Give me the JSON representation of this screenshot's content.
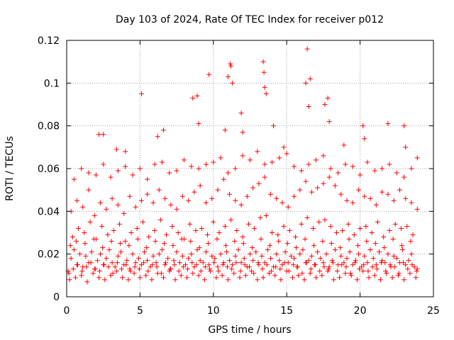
{
  "chart_data": {
    "type": "scatter",
    "title": "Day 103 of 2024, Rate Of TEC Index for receiver p012",
    "xlabel": "GPS time / hours",
    "ylabel": "ROTI / TECUs",
    "xlim": [
      0,
      25
    ],
    "ylim": [
      0,
      0.12
    ],
    "xticks": [
      0,
      5,
      10,
      15,
      20,
      25
    ],
    "xtick_labels": [
      "0",
      "5",
      "10",
      "15",
      "20",
      "25"
    ],
    "yticks": [
      0,
      0.02,
      0.04,
      0.06,
      0.08,
      0.1,
      0.12
    ],
    "ytick_labels": [
      "0",
      "0.02",
      "0.04",
      "0.06",
      "0.08",
      "0.1",
      "0.12"
    ],
    "grid": true,
    "marker": "plus",
    "color": "#ff0000",
    "series": [
      {
        "x": [
          0.1,
          0.3,
          0.5,
          0.7,
          0.9,
          1.1,
          1.3,
          1.5,
          1.7,
          1.9,
          2.1,
          2.3,
          2.5,
          2.7,
          2.9,
          3.1,
          3.3,
          3.5,
          3.7,
          3.9,
          4.1,
          4.3,
          4.5,
          4.7,
          4.9,
          5.1,
          5.3,
          5.5,
          5.7,
          5.9,
          6.1,
          6.3,
          6.5,
          6.7,
          6.9,
          7.1,
          7.3,
          7.5,
          7.7,
          7.9,
          8.1,
          8.3,
          8.5,
          8.7,
          8.9,
          9.1,
          9.3,
          9.5,
          9.7,
          9.9,
          10.1,
          10.3,
          10.5,
          10.7,
          10.9,
          11.1,
          11.3,
          11.5,
          11.7,
          11.9,
          12.1,
          12.3,
          12.5,
          12.7,
          12.9,
          13.1,
          13.3,
          13.5,
          13.7,
          13.9,
          14.1,
          14.3,
          14.5,
          14.7,
          14.9,
          15.1,
          15.3,
          15.5,
          15.7,
          15.9,
          16.1,
          16.3,
          16.5,
          16.7,
          16.9,
          17.1,
          17.3,
          17.5,
          17.7,
          17.9,
          18.1,
          18.3,
          18.5,
          18.7,
          18.9,
          19.1,
          19.3,
          19.5,
          19.7,
          19.9,
          20.1,
          20.3,
          20.5,
          20.7,
          20.9,
          21.1,
          21.3,
          21.5,
          21.7,
          21.9,
          22.1,
          22.3,
          22.5,
          22.7,
          22.9,
          23.1,
          23.3,
          23.5,
          23.7,
          23.9,
          0.2,
          0.6,
          1.0,
          1.4,
          1.8,
          2.2,
          2.6,
          3.0,
          3.4,
          3.8,
          4.2,
          4.6,
          5.0,
          5.4,
          5.8,
          6.2,
          6.6,
          7.0,
          7.4,
          7.8,
          8.2,
          8.6,
          9.0,
          9.4,
          9.8,
          10.2,
          10.6,
          11.0,
          11.4,
          11.8,
          12.2,
          12.6,
          13.0,
          13.4,
          13.8,
          14.2,
          14.6,
          15.0,
          15.4,
          15.8,
          16.2,
          16.6,
          17.0,
          17.4,
          17.8,
          18.2,
          18.6,
          19.0,
          19.4,
          19.8,
          20.2,
          20.6,
          21.0,
          21.4,
          21.8,
          22.2,
          22.6,
          23.0,
          23.4,
          23.8,
          0.4,
          0.8,
          1.2,
          1.6,
          2.0,
          2.4,
          2.8,
          3.2,
          3.6,
          4.0,
          4.4,
          4.8,
          5.2,
          5.6,
          6.0,
          6.4,
          6.8,
          7.2,
          7.6,
          8.0,
          8.4,
          8.8,
          9.2,
          9.6,
          10.0,
          10.4,
          10.8,
          11.2,
          11.6,
          12.0,
          12.4,
          12.8,
          13.2,
          13.6,
          14.0,
          14.4,
          14.8,
          15.2,
          15.6,
          16.0,
          16.4,
          16.8,
          17.2,
          17.6,
          18.0,
          18.4,
          18.8,
          19.2,
          19.6,
          20.0,
          20.4,
          20.8,
          21.2,
          21.6,
          22.0,
          22.4,
          22.8,
          23.2,
          23.6,
          0.3,
          0.7,
          1.1,
          1.5,
          1.9,
          2.3,
          2.7,
          3.1,
          3.5,
          3.9,
          4.3,
          4.7,
          5.1,
          5.5,
          5.9,
          6.3,
          6.7,
          7.1,
          7.5,
          7.9,
          8.3,
          8.7,
          9.1,
          9.5,
          9.9,
          10.3,
          10.7,
          11.1,
          11.5,
          11.9,
          12.3,
          12.7,
          13.1,
          13.5,
          13.9,
          14.3,
          14.7,
          15.1,
          15.5,
          15.9,
          16.3,
          16.7,
          17.1,
          17.5,
          17.9,
          18.3,
          18.7,
          19.1,
          19.5,
          19.9,
          20.3,
          20.7,
          21.1,
          21.5,
          21.9,
          22.3,
          22.7,
          23.1,
          23.5,
          23.9,
          0.5,
          1.0,
          1.5,
          2.0,
          2.5,
          3.0,
          3.5,
          4.0,
          4.5,
          5.0,
          5.5,
          6.0,
          6.5,
          7.0,
          7.5,
          8.0,
          8.5,
          9.0,
          9.5,
          10.0,
          10.5,
          11.0,
          11.5,
          12.0,
          12.5,
          13.0,
          13.5,
          14.0,
          14.5,
          15.0,
          15.5,
          16.0,
          16.5,
          17.0,
          17.5,
          18.0,
          18.5,
          19.0,
          19.5,
          20.0,
          20.5,
          21.0,
          21.5,
          22.0,
          22.5,
          23.0,
          23.5,
          0.15,
          0.45,
          0.75,
          1.05,
          1.35,
          1.65,
          1.95,
          2.25,
          2.55,
          2.85,
          3.15,
          3.45,
          3.75,
          4.05,
          4.35,
          4.65,
          4.95,
          5.25,
          5.55,
          5.85,
          6.15,
          6.45,
          6.75,
          7.05,
          7.35,
          7.65,
          7.95,
          8.25,
          8.55,
          8.85,
          9.15,
          9.45,
          9.75,
          10.05,
          10.35,
          10.65,
          10.95,
          11.25,
          11.55,
          11.85,
          12.15,
          12.45,
          12.75,
          13.05,
          13.35,
          13.65,
          13.95,
          14.25,
          14.55,
          14.85,
          15.15,
          15.45,
          15.75,
          16.05,
          16.35,
          16.65,
          16.95,
          17.25,
          17.55,
          17.85,
          18.15,
          18.45,
          18.75,
          19.05,
          19.35,
          19.65,
          19.95,
          20.25,
          20.55,
          20.85,
          21.15,
          21.45,
          21.75,
          22.05,
          22.35,
          22.65,
          22.95,
          23.25,
          23.55,
          23.85,
          0.25,
          0.65,
          1.25,
          1.85,
          2.45,
          3.05,
          3.65,
          4.25,
          4.85,
          5.45,
          6.05,
          6.65,
          7.25,
          7.85,
          8.45,
          9.05,
          9.65,
          10.25,
          10.85,
          11.45,
          12.05,
          12.65,
          13.25,
          13.85,
          14.45,
          15.05,
          15.65,
          16.25,
          16.85,
          17.45,
          18.05,
          18.65,
          19.25,
          19.85,
          20.45,
          21.05,
          21.65,
          22.25,
          22.85,
          23.45,
          2.2,
          2.5,
          3.4,
          4.0,
          5.1,
          6.2,
          6.6,
          8.6,
          8.9,
          9.0,
          9.7,
          10.8,
          11.0,
          11.2,
          11.3,
          11.9,
          13.4,
          13.5,
          13.6,
          14.1,
          14.8,
          16.3,
          16.4,
          16.5,
          17.6,
          17.8,
          17.9,
          18.9,
          20.2,
          20.3,
          21.9,
          23.0,
          23.1,
          23.9,
          16.6,
          13.45,
          11.15,
          12.0
        ],
        "y": [
          0.012,
          0.018,
          0.022,
          0.015,
          0.02,
          0.014,
          0.019,
          0.016,
          0.021,
          0.013,
          0.017,
          0.02,
          0.015,
          0.018,
          0.022,
          0.016,
          0.014,
          0.019,
          0.021,
          0.015,
          0.017,
          0.013,
          0.02,
          0.016,
          0.018,
          0.015,
          0.021,
          0.017,
          0.014,
          0.019,
          0.016,
          0.02,
          0.022,
          0.015,
          0.018,
          0.013,
          0.017,
          0.021,
          0.016,
          0.019,
          0.015,
          0.018,
          0.02,
          0.014,
          0.022,
          0.017,
          0.016,
          0.021,
          0.015,
          0.019,
          0.018,
          0.014,
          0.02,
          0.016,
          0.021,
          0.017,
          0.015,
          0.019,
          0.022,
          0.016,
          0.018,
          0.014,
          0.02,
          0.017,
          0.021,
          0.015,
          0.019,
          0.016,
          0.022,
          0.018,
          0.014,
          0.02,
          0.017,
          0.015,
          0.021,
          0.016,
          0.019,
          0.018,
          0.014,
          0.02,
          0.022,
          0.016,
          0.017,
          0.019,
          0.015,
          0.021,
          0.018,
          0.016,
          0.02,
          0.014,
          0.017,
          0.022,
          0.015,
          0.019,
          0.016,
          0.018,
          0.021,
          0.015,
          0.017,
          0.02,
          0.014,
          0.019,
          0.016,
          0.022,
          0.018,
          0.015,
          0.021,
          0.017,
          0.016,
          0.02,
          0.014,
          0.019,
          0.018,
          0.016,
          0.022,
          0.015,
          0.017,
          0.02,
          0.014,
          0.013,
          0.008,
          0.009,
          0.01,
          0.007,
          0.011,
          0.009,
          0.008,
          0.01,
          0.012,
          0.009,
          0.008,
          0.011,
          0.009,
          0.01,
          0.008,
          0.011,
          0.009,
          0.012,
          0.008,
          0.01,
          0.009,
          0.011,
          0.01,
          0.008,
          0.012,
          0.009,
          0.01,
          0.008,
          0.011,
          0.009,
          0.01,
          0.012,
          0.008,
          0.009,
          0.011,
          0.01,
          0.008,
          0.012,
          0.009,
          0.01,
          0.008,
          0.011,
          0.009,
          0.01,
          0.012,
          0.008,
          0.009,
          0.011,
          0.01,
          0.008,
          0.012,
          0.009,
          0.01,
          0.008,
          0.011,
          0.009,
          0.01,
          0.008,
          0.011,
          0.009,
          0.028,
          0.032,
          0.03,
          0.035,
          0.027,
          0.033,
          0.029,
          0.031,
          0.034,
          0.026,
          0.03,
          0.032,
          0.035,
          0.028,
          0.031,
          0.036,
          0.029,
          0.033,
          0.03,
          0.027,
          0.034,
          0.031,
          0.032,
          0.029,
          0.035,
          0.03,
          0.033,
          0.036,
          0.031,
          0.028,
          0.034,
          0.032,
          0.037,
          0.038,
          0.03,
          0.029,
          0.033,
          0.031,
          0.028,
          0.034,
          0.037,
          0.032,
          0.035,
          0.036,
          0.033,
          0.03,
          0.031,
          0.034,
          0.029,
          0.032,
          0.033,
          0.03,
          0.035,
          0.028,
          0.031,
          0.034,
          0.032,
          0.033,
          0.029,
          0.04,
          0.045,
          0.042,
          0.05,
          0.038,
          0.044,
          0.041,
          0.046,
          0.043,
          0.039,
          0.047,
          0.042,
          0.045,
          0.048,
          0.044,
          0.05,
          0.046,
          0.043,
          0.041,
          0.047,
          0.045,
          0.049,
          0.052,
          0.044,
          0.046,
          0.05,
          0.055,
          0.048,
          0.045,
          0.043,
          0.047,
          0.051,
          0.053,
          0.056,
          0.048,
          0.046,
          0.044,
          0.042,
          0.047,
          0.05,
          0.054,
          0.049,
          0.051,
          0.053,
          0.056,
          0.052,
          0.048,
          0.045,
          0.044,
          0.05,
          0.047,
          0.046,
          0.043,
          0.049,
          0.048,
          0.045,
          0.05,
          0.046,
          0.044,
          0.041,
          0.055,
          0.06,
          0.058,
          0.057,
          0.062,
          0.056,
          0.059,
          0.061,
          0.057,
          0.06,
          0.055,
          0.062,
          0.063,
          0.058,
          0.059,
          0.064,
          0.061,
          0.06,
          0.062,
          0.063,
          0.065,
          0.058,
          0.06,
          0.066,
          0.064,
          0.068,
          0.062,
          0.063,
          0.065,
          0.067,
          0.061,
          0.059,
          0.062,
          0.064,
          0.066,
          0.06,
          0.058,
          0.062,
          0.061,
          0.057,
          0.063,
          0.059,
          0.06,
          0.062,
          0.058,
          0.056,
          0.06,
          0.011,
          0.013,
          0.015,
          0.012,
          0.014,
          0.016,
          0.013,
          0.012,
          0.015,
          0.014,
          0.011,
          0.016,
          0.013,
          0.015,
          0.012,
          0.014,
          0.013,
          0.016,
          0.012,
          0.015,
          0.014,
          0.011,
          0.016,
          0.013,
          0.015,
          0.012,
          0.014,
          0.013,
          0.016,
          0.015,
          0.012,
          0.014,
          0.013,
          0.016,
          0.012,
          0.015,
          0.014,
          0.013,
          0.016,
          0.012,
          0.015,
          0.014,
          0.011,
          0.016,
          0.013,
          0.015,
          0.012,
          0.014,
          0.013,
          0.016,
          0.012,
          0.015,
          0.014,
          0.011,
          0.016,
          0.013,
          0.015,
          0.012,
          0.014,
          0.013,
          0.016,
          0.012,
          0.015,
          0.014,
          0.011,
          0.016,
          0.013,
          0.015,
          0.012,
          0.014,
          0.013,
          0.016,
          0.012,
          0.015,
          0.014,
          0.011,
          0.016,
          0.013,
          0.015,
          0.012,
          0.024,
          0.026,
          0.025,
          0.027,
          0.023,
          0.026,
          0.025,
          0.024,
          0.027,
          0.023,
          0.026,
          0.025,
          0.024,
          0.027,
          0.026,
          0.023,
          0.025,
          0.027,
          0.024,
          0.026,
          0.025,
          0.023,
          0.027,
          0.024,
          0.026,
          0.025,
          0.023,
          0.027,
          0.024,
          0.026,
          0.025,
          0.023,
          0.027,
          0.024,
          0.026,
          0.025,
          0.023,
          0.027,
          0.024,
          0.026,
          0.076,
          0.076,
          0.069,
          0.068,
          0.095,
          0.075,
          0.078,
          0.093,
          0.094,
          0.081,
          0.104,
          0.078,
          0.103,
          0.108,
          0.1,
          0.086,
          0.11,
          0.098,
          0.095,
          0.08,
          0.07,
          0.1,
          0.116,
          0.089,
          0.09,
          0.093,
          0.082,
          0.071,
          0.08,
          0.074,
          0.081,
          0.08,
          0.07,
          0.065,
          0.102,
          0.105,
          0.109,
          0.077
        ]
      }
    ]
  }
}
